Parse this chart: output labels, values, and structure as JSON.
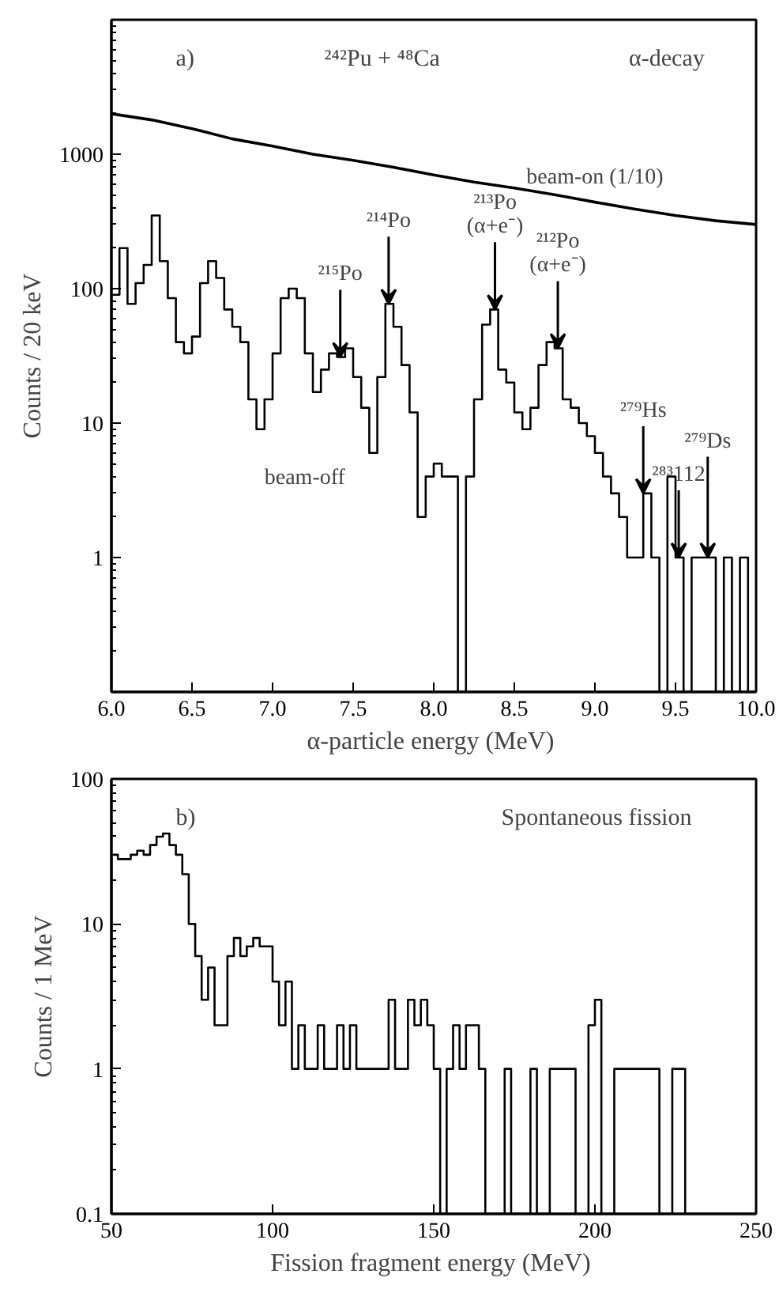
{
  "chart_data": [
    {
      "type": "histogram",
      "xlabel": "α-particle energy  (MeV)",
      "ylabel": "Counts / 20 keV",
      "log": "y",
      "grid": false,
      "xlim": [
        6.0,
        10.0
      ],
      "xticks": [
        {
          "value": 6,
          "label": "6.0"
        },
        6.5,
        {
          "value": 7,
          "label": "7.0"
        },
        7.5,
        {
          "value": 8,
          "label": "8.0"
        },
        8.5,
        {
          "value": 9,
          "label": "9.0"
        },
        9.5,
        {
          "value": 10,
          "label": "10.0"
        }
      ],
      "ylim": [
        0.1,
        10000
      ],
      "yticks": [
        1,
        10,
        100,
        1000
      ],
      "bins": [
        6.0,
        6.05,
        6.1,
        6.15,
        6.2,
        6.25,
        6.3,
        6.35,
        6.4,
        6.45,
        6.5,
        6.55,
        6.6,
        6.65,
        6.7,
        6.75,
        6.8,
        6.85,
        6.9,
        6.95,
        7.0,
        7.05,
        7.1,
        7.15,
        7.2,
        7.25,
        7.3,
        7.35,
        7.4,
        7.45,
        7.5,
        7.55,
        7.6,
        7.65,
        7.7,
        7.75,
        7.8,
        7.85,
        7.9,
        7.95,
        8.0,
        8.05,
        8.1,
        8.15,
        8.2,
        8.25,
        8.3,
        8.35,
        8.4,
        8.45,
        8.5,
        8.55,
        8.6,
        8.65,
        8.7,
        8.75,
        8.8,
        8.85,
        8.9,
        8.95,
        9.0,
        9.05,
        9.1,
        9.15,
        9.2,
        9.25,
        9.3,
        9.35,
        9.4,
        9.45,
        9.5,
        9.55,
        9.6,
        9.65,
        9.7,
        9.75,
        9.8,
        9.85,
        9.9,
        9.95,
        10.0
      ],
      "series": [
        {
          "name": "beam-off",
          "type": "histogram",
          "color": "#000000",
          "values": [
            90,
            200,
            77,
            110,
            150,
            350,
            160,
            85,
            40,
            33,
            44,
            110,
            160,
            120,
            70,
            52,
            40,
            15,
            9,
            15,
            33,
            85,
            100,
            85,
            33,
            17,
            25,
            33,
            31,
            36,
            22,
            13,
            6,
            22,
            77,
            52,
            27,
            12,
            2,
            4,
            5,
            4,
            4,
            null,
            4,
            15,
            54,
            70,
            25,
            20,
            12,
            9,
            13,
            27,
            40,
            36,
            15,
            13,
            10,
            8,
            6,
            4,
            3,
            2,
            1,
            1,
            3,
            1,
            null,
            4,
            1,
            null,
            1,
            1,
            1,
            null,
            1,
            null,
            1,
            null
          ]
        },
        {
          "name": "beam-on (1/10)",
          "type": "line",
          "color": "#000000",
          "x": [
            6.0,
            6.25,
            6.5,
            6.75,
            7.0,
            7.25,
            7.5,
            7.75,
            8.0,
            8.25,
            8.5,
            8.75,
            9.0,
            9.25,
            9.5,
            9.75,
            10.0
          ],
          "values": [
            2000,
            1800,
            1550,
            1300,
            1150,
            1000,
            900,
            800,
            700,
            620,
            560,
            500,
            440,
            390,
            350,
            320,
            300
          ]
        }
      ],
      "annotations": [
        "a)",
        "²⁴²Pu + ⁴⁸Ca",
        "α-decay",
        {
          "text": "²¹⁵Po",
          "x": 7.42,
          "y": 31
        },
        {
          "text": "²¹⁴Po",
          "x": 7.72,
          "y": 77
        },
        {
          "text": "²¹³Po\n(α+e⁻)",
          "x": 8.38,
          "y": 70
        },
        {
          "text": "²¹²Po\n(α+e⁻)",
          "x": 8.77,
          "y": 36
        },
        {
          "text": "²⁷⁹Hs",
          "x": 9.3,
          "y": 3
        },
        {
          "text": "²⁸³112",
          "x": 9.52,
          "y": 1
        },
        {
          "text": "²⁷⁹Ds",
          "x": 9.7,
          "y": 1
        }
      ]
    },
    {
      "type": "histogram",
      "xlabel": "Fission fragment energy  (MeV)",
      "ylabel": "Counts / 1 MeV",
      "log": "y",
      "grid": false,
      "xlim": [
        50,
        250
      ],
      "xticks": [
        50,
        100,
        150,
        200,
        250
      ],
      "ylim": [
        0.1,
        100
      ],
      "yticks": [
        0.1,
        1,
        10,
        100
      ],
      "color": "#000000",
      "bins": [
        50,
        52,
        54,
        56,
        58,
        60,
        62,
        64,
        66,
        68,
        70,
        72,
        74,
        76,
        78,
        80,
        82,
        84,
        86,
        88,
        90,
        92,
        94,
        96,
        98,
        100,
        102,
        104,
        106,
        108,
        110,
        112,
        114,
        116,
        118,
        120,
        122,
        124,
        126,
        128,
        130,
        132,
        134,
        136,
        138,
        140,
        142,
        144,
        146,
        148,
        150,
        152,
        154,
        156,
        158,
        160,
        162,
        164,
        166,
        168,
        170,
        172,
        174,
        176,
        178,
        180,
        182,
        184,
        186,
        188,
        190,
        192,
        194,
        196,
        198,
        200,
        202,
        204,
        206,
        208,
        210,
        212,
        214,
        216,
        218,
        220,
        222,
        224,
        226,
        228,
        230,
        232,
        234,
        236,
        238,
        240,
        242,
        244,
        246,
        248,
        250
      ],
      "values": [
        30,
        28,
        28,
        30,
        32,
        30,
        35,
        40,
        42,
        35,
        30,
        22,
        10,
        6,
        3,
        5,
        2,
        2,
        6,
        8,
        6,
        7,
        8,
        7,
        7,
        4,
        2,
        4,
        1,
        2,
        1,
        1,
        2,
        1,
        1,
        2,
        1,
        2,
        1,
        1,
        1,
        1,
        1,
        3,
        1,
        1,
        3,
        2,
        3,
        2,
        1,
        null,
        1,
        2,
        1,
        2,
        2,
        1,
        null,
        null,
        null,
        1,
        null,
        null,
        null,
        1,
        null,
        null,
        1,
        1,
        1,
        1,
        null,
        null,
        2,
        3,
        null,
        null,
        1,
        1,
        1,
        1,
        1,
        1,
        1,
        null,
        null,
        1,
        1,
        null,
        null,
        null,
        null,
        null,
        null,
        null,
        null,
        null,
        null,
        null
      ],
      "annotations": [
        "b)",
        "Spontaneous fission"
      ]
    }
  ]
}
